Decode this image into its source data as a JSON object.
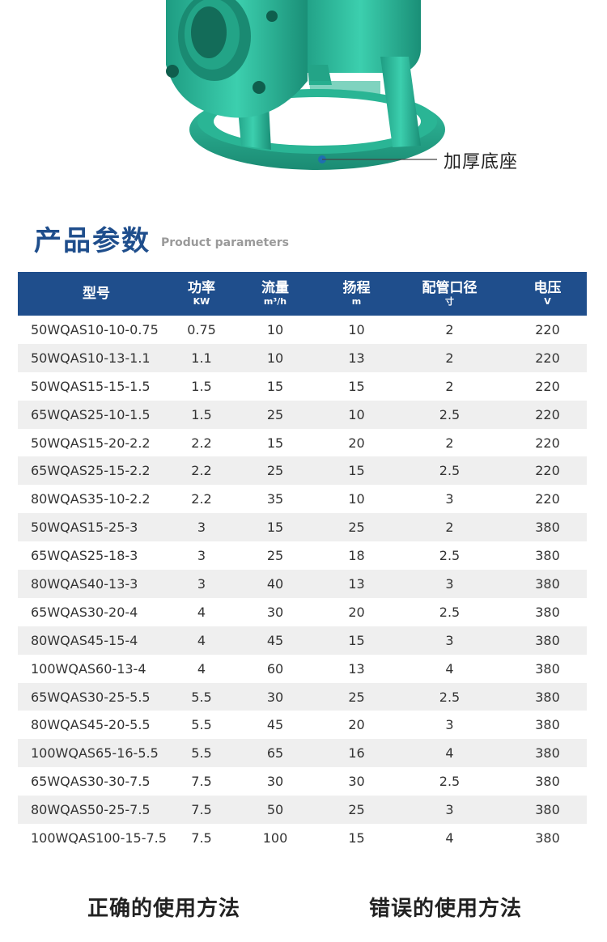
{
  "hero": {
    "base_label": "加厚底座"
  },
  "section": {
    "title": "产品参数",
    "subtitle": "Product parameters"
  },
  "table": {
    "headers": [
      {
        "label": "型号",
        "unit": ""
      },
      {
        "label": "功率",
        "unit": "KW"
      },
      {
        "label": "流量",
        "unit": "m³/h"
      },
      {
        "label": "扬程",
        "unit": "m"
      },
      {
        "label": "配管口径",
        "unit": "寸"
      },
      {
        "label": "电压",
        "unit": "V"
      }
    ],
    "rows": [
      [
        "50WQAS10-10-0.75",
        "0.75",
        "10",
        "10",
        "2",
        "220"
      ],
      [
        "50WQAS10-13-1.1",
        "1.1",
        "10",
        "13",
        "2",
        "220"
      ],
      [
        "50WQAS15-15-1.5",
        "1.5",
        "15",
        "15",
        "2",
        "220"
      ],
      [
        "65WQAS25-10-1.5",
        "1.5",
        "25",
        "10",
        "2.5",
        "220"
      ],
      [
        "50WQAS15-20-2.2",
        "2.2",
        "15",
        "20",
        "2",
        "220"
      ],
      [
        "65WQAS25-15-2.2",
        "2.2",
        "25",
        "15",
        "2.5",
        "220"
      ],
      [
        "80WQAS35-10-2.2",
        "2.2",
        "35",
        "10",
        "3",
        "220"
      ],
      [
        "50WQAS15-25-3",
        "3",
        "15",
        "25",
        "2",
        "380"
      ],
      [
        "65WQAS25-18-3",
        "3",
        "25",
        "18",
        "2.5",
        "380"
      ],
      [
        "80WQAS40-13-3",
        "3",
        "40",
        "13",
        "3",
        "380"
      ],
      [
        "65WQAS30-20-4",
        "4",
        "30",
        "20",
        "2.5",
        "380"
      ],
      [
        "80WQAS45-15-4",
        "4",
        "45",
        "15",
        "3",
        "380"
      ],
      [
        "100WQAS60-13-4",
        "4",
        "60",
        "13",
        "4",
        "380"
      ],
      [
        "65WQAS30-25-5.5",
        "5.5",
        "30",
        "25",
        "2.5",
        "380"
      ],
      [
        "80WQAS45-20-5.5",
        "5.5",
        "45",
        "20",
        "3",
        "380"
      ],
      [
        "100WQAS65-16-5.5",
        "5.5",
        "65",
        "16",
        "4",
        "380"
      ],
      [
        "65WQAS30-30-7.5",
        "7.5",
        "30",
        "30",
        "2.5",
        "380"
      ],
      [
        "80WQAS50-25-7.5",
        "7.5",
        "50",
        "25",
        "3",
        "380"
      ],
      [
        "100WQAS100-15-7.5",
        "7.5",
        "100",
        "15",
        "4",
        "380"
      ]
    ]
  },
  "usage": {
    "correct": "正确的使用方法",
    "wrong": "错误的使用方法"
  },
  "colors": {
    "brand": "#1f4e8c",
    "pump": "#2bb89a",
    "row_alt": "#efefef"
  }
}
